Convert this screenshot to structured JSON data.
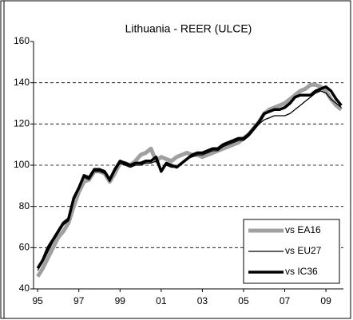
{
  "chart_data": {
    "type": "line",
    "title": "Lithuania - REER (ULCE)",
    "x": [
      1995,
      1995.25,
      1995.5,
      1995.75,
      1996,
      1996.25,
      1996.5,
      1996.75,
      1997,
      1997.25,
      1997.5,
      1997.75,
      1998,
      1998.25,
      1998.5,
      1998.75,
      1999,
      1999.25,
      1999.5,
      1999.75,
      2000,
      2000.25,
      2000.5,
      2000.75,
      2001,
      2001.25,
      2001.5,
      2001.75,
      2002,
      2002.25,
      2002.5,
      2002.75,
      2003,
      2003.25,
      2003.5,
      2003.75,
      2004,
      2004.25,
      2004.5,
      2004.75,
      2005,
      2005.25,
      2005.5,
      2005.75,
      2006,
      2006.25,
      2006.5,
      2006.75,
      2007,
      2007.25,
      2007.5,
      2007.75,
      2008,
      2008.25,
      2008.5,
      2008.75,
      2009,
      2009.25,
      2009.5,
      2009.75
    ],
    "series": [
      {
        "name": "vs EA16",
        "color": "#a0a0a0",
        "width": 5,
        "values": [
          46,
          50,
          55,
          60,
          65,
          68,
          72,
          80,
          87,
          92,
          93,
          97,
          97,
          96,
          92,
          96,
          101,
          101,
          100,
          102,
          105,
          106,
          108,
          102,
          104,
          103,
          102,
          104,
          105,
          106,
          105,
          105,
          104,
          105,
          106,
          107,
          108,
          109,
          110,
          111,
          113,
          115,
          118,
          121,
          125,
          127,
          128,
          129,
          130,
          132,
          134,
          136,
          137,
          139,
          139,
          138,
          136,
          132,
          129,
          127
        ]
      },
      {
        "name": "vs EU27",
        "color": "#000000",
        "width": 1.3,
        "values": [
          49,
          53,
          58,
          63,
          67,
          71,
          73,
          83,
          88,
          94,
          93,
          97,
          97,
          96,
          92,
          97,
          101,
          100,
          99,
          100,
          100,
          101,
          101,
          102,
          97,
          100,
          99,
          99,
          101,
          103,
          104,
          105,
          105,
          106,
          107,
          107,
          109,
          110,
          111,
          112,
          112,
          114,
          117,
          120,
          122,
          123,
          124,
          124,
          124,
          125,
          127,
          129,
          131,
          133,
          135,
          136,
          135,
          132,
          130,
          128
        ]
      },
      {
        "name": "vs IC36",
        "color": "#000000",
        "width": 3.5,
        "values": [
          50,
          54,
          60,
          64,
          68,
          72,
          74,
          84,
          89,
          95,
          94,
          98,
          98,
          97,
          93,
          98,
          102,
          101,
          100,
          101,
          101,
          102,
          102,
          104,
          97,
          101,
          100,
          99,
          101,
          103,
          105,
          106,
          106,
          107,
          108,
          108,
          110,
          111,
          112,
          113,
          113,
          115,
          118,
          121,
          125,
          126,
          127,
          127,
          128,
          130,
          133,
          134,
          134,
          134,
          136,
          137,
          138,
          136,
          132,
          129
        ]
      }
    ],
    "xlim": [
      1994.8,
      2009.85
    ],
    "xticks": [
      {
        "value": 1995,
        "label": "95"
      },
      {
        "value": 1997,
        "label": "97"
      },
      {
        "value": 1999,
        "label": "99"
      },
      {
        "value": 2001,
        "label": "01"
      },
      {
        "value": 2003,
        "label": "03"
      },
      {
        "value": 2005,
        "label": "05"
      },
      {
        "value": 2007,
        "label": "07"
      },
      {
        "value": 2009,
        "label": "09"
      }
    ],
    "ylim": [
      40,
      160
    ],
    "yticks": [
      40,
      60,
      80,
      100,
      120,
      140,
      160
    ],
    "grid": true,
    "legend": "lower right"
  }
}
